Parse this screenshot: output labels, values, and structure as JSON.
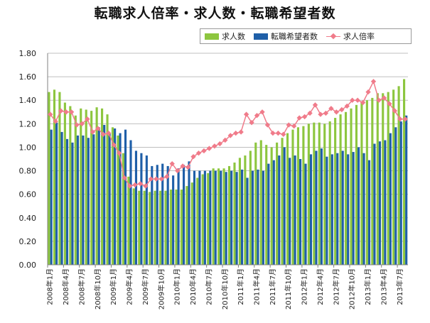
{
  "chart_data": {
    "type": "bar",
    "title": "転職求人倍率・求人数・転職希望者数",
    "ylim": [
      0,
      1.8
    ],
    "yticks": [
      "0.00",
      "0.20",
      "0.40",
      "0.60",
      "0.80",
      "1.00",
      "1.20",
      "1.40",
      "1.60",
      "1.80"
    ],
    "x_tick_labels": [
      "2008年1月",
      "2008年4月",
      "2008年7月",
      "2008年10月",
      "2009年1月",
      "2009年4月",
      "2009年7月",
      "2009年10月",
      "2010年1月",
      "2010年4月",
      "2010年7月",
      "2010年10月",
      "2011年1月",
      "2011年4月",
      "2011年7月",
      "2011年10月",
      "2012年1月",
      "2012年4月",
      "2012年7月",
      "2012年10月",
      "2013年1月",
      "2013年4月",
      "2013年7月"
    ],
    "legend_position": "top-right",
    "series": [
      {
        "name": "求人数",
        "kind": "bar",
        "color": "#8dc63f",
        "values": [
          1.47,
          1.49,
          1.47,
          1.38,
          1.35,
          1.27,
          1.33,
          1.32,
          1.31,
          1.34,
          1.33,
          1.28,
          1.17,
          1.1,
          0.95,
          0.75,
          0.65,
          0.63,
          0.63,
          0.62,
          0.63,
          0.63,
          0.63,
          0.64,
          0.64,
          0.64,
          0.67,
          0.7,
          0.74,
          0.77,
          0.78,
          0.82,
          0.82,
          0.82,
          0.84,
          0.87,
          0.91,
          0.93,
          0.97,
          1.04,
          1.06,
          1.02,
          1.0,
          1.04,
          1.08,
          1.12,
          1.15,
          1.17,
          1.18,
          1.2,
          1.21,
          1.21,
          1.2,
          1.22,
          1.25,
          1.28,
          1.3,
          1.33,
          1.36,
          1.38,
          1.4,
          1.42,
          1.46,
          1.46,
          1.47,
          1.49,
          1.52,
          1.58
        ]
      },
      {
        "name": "転職希望者数",
        "kind": "bar",
        "color": "#1f5fa8",
        "values": [
          1.15,
          1.21,
          1.13,
          1.07,
          1.04,
          1.1,
          1.1,
          1.08,
          1.11,
          1.17,
          1.19,
          1.12,
          1.16,
          1.12,
          1.15,
          1.06,
          0.97,
          0.95,
          0.93,
          0.84,
          0.85,
          0.86,
          0.84,
          0.76,
          0.82,
          0.85,
          0.88,
          0.8,
          0.8,
          0.8,
          0.8,
          0.8,
          0.8,
          0.79,
          0.8,
          0.79,
          0.81,
          0.74,
          0.8,
          0.81,
          0.8,
          0.86,
          0.89,
          0.93,
          1.0,
          0.91,
          0.93,
          0.9,
          0.86,
          0.94,
          0.97,
          0.99,
          0.92,
          0.94,
          0.95,
          0.97,
          0.94,
          0.96,
          1.0,
          0.95,
          0.89,
          1.03,
          1.05,
          1.06,
          1.12,
          1.17,
          1.22,
          1.27
        ]
      },
      {
        "name": "求人倍率",
        "kind": "line",
        "color": "#f07b8a",
        "values": [
          1.28,
          1.22,
          1.31,
          1.3,
          1.3,
          1.19,
          1.2,
          1.24,
          1.13,
          1.16,
          1.11,
          1.12,
          1.02,
          0.95,
          0.74,
          0.67,
          0.68,
          0.69,
          0.67,
          0.73,
          0.73,
          0.73,
          0.75,
          0.86,
          0.8,
          0.84,
          0.83,
          0.92,
          0.95,
          0.97,
          0.99,
          1.01,
          1.03,
          1.06,
          1.1,
          1.12,
          1.13,
          1.28,
          1.21,
          1.27,
          1.3,
          1.19,
          1.12,
          1.12,
          1.11,
          1.19,
          1.18,
          1.25,
          1.26,
          1.29,
          1.36,
          1.28,
          1.29,
          1.33,
          1.3,
          1.32,
          1.35,
          1.4,
          1.4,
          1.38,
          1.47,
          1.56,
          1.4,
          1.42,
          1.37,
          1.31,
          1.24,
          1.24
        ]
      }
    ]
  }
}
